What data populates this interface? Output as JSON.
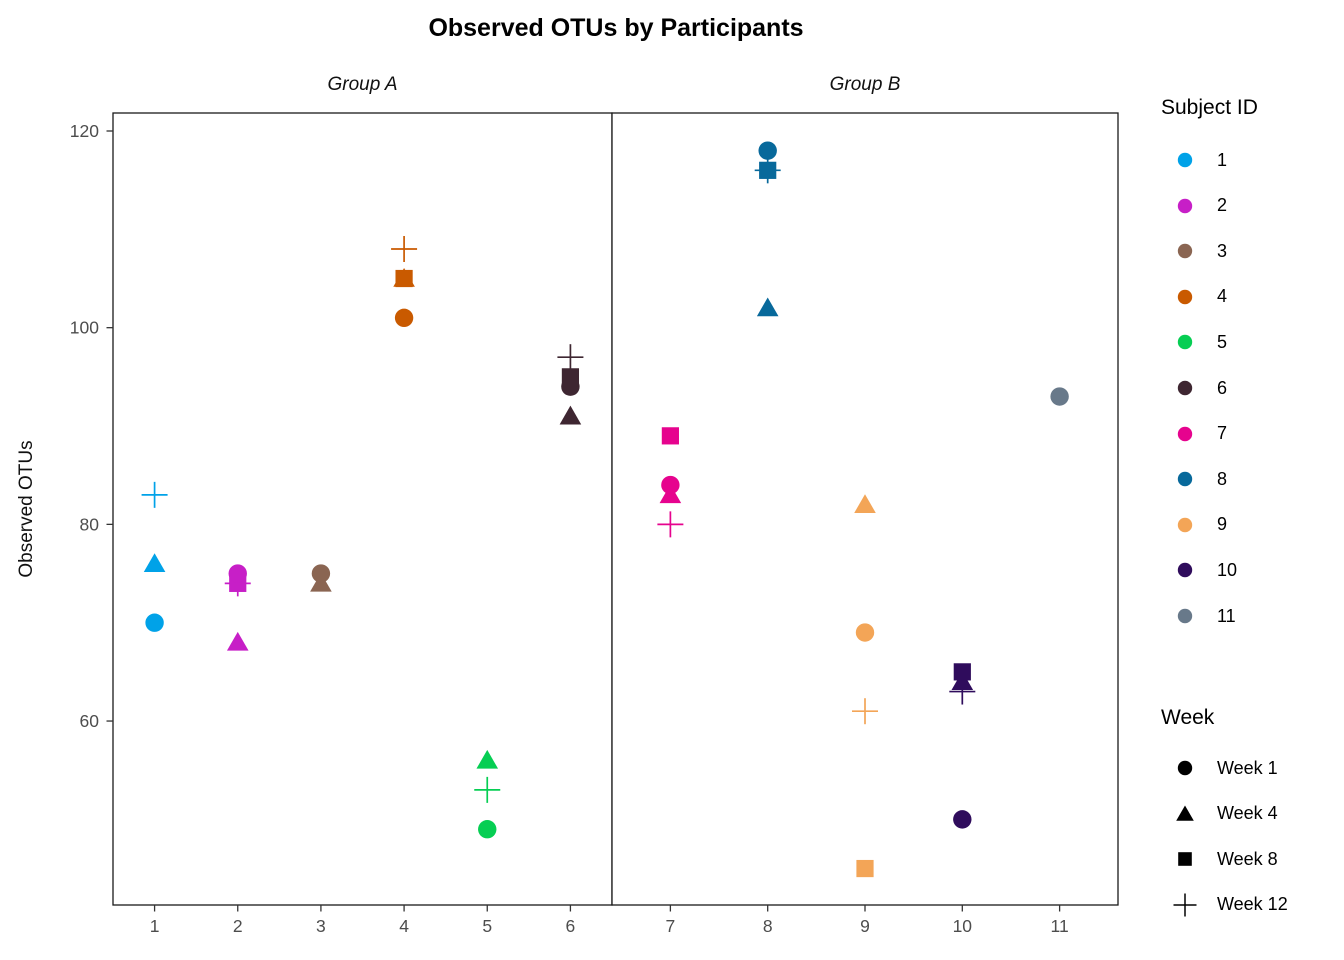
{
  "chart_data": {
    "type": "scatter",
    "title": "Observed OTUs by Participants",
    "ylabel": "Observed OTUs",
    "xlabel": "",
    "grid": false,
    "legend_position": "right",
    "ylim": [
      41.3,
      121.8
    ],
    "yticks": [
      120,
      100,
      80,
      60
    ],
    "facets": [
      {
        "label": "Group A",
        "xlim": [
          0.5,
          6.5
        ],
        "xticks": [
          1,
          2,
          3,
          4,
          5,
          6
        ]
      },
      {
        "label": "Group B",
        "xlim": [
          6.4,
          11.6
        ],
        "xticks": [
          7,
          8,
          9,
          10,
          11
        ]
      }
    ],
    "color_legend": {
      "title": "Subject ID",
      "items": [
        {
          "label": "1",
          "color": "#00A2E8"
        },
        {
          "label": "2",
          "color": "#C71FC7"
        },
        {
          "label": "3",
          "color": "#8A6552"
        },
        {
          "label": "4",
          "color": "#C95A00"
        },
        {
          "label": "5",
          "color": "#06CE53"
        },
        {
          "label": "6",
          "color": "#3E2631"
        },
        {
          "label": "7",
          "color": "#E6038E"
        },
        {
          "label": "8",
          "color": "#08699B"
        },
        {
          "label": "9",
          "color": "#F3A557"
        },
        {
          "label": "10",
          "color": "#2F0C5C"
        },
        {
          "label": "11",
          "color": "#68798A"
        }
      ]
    },
    "shape_legend": {
      "title": "Week",
      "items": [
        {
          "label": "Week 1",
          "shape": "circle"
        },
        {
          "label": "Week 4",
          "shape": "triangle"
        },
        {
          "label": "Week 8",
          "shape": "square"
        },
        {
          "label": "Week 12",
          "shape": "plus"
        }
      ]
    },
    "series": [
      {
        "subject": "1",
        "facet": 0,
        "x": 1,
        "color": "#00A2E8",
        "points": [
          {
            "week": "Week 12",
            "shape": "plus",
            "y": 83
          },
          {
            "week": "Week 4",
            "shape": "triangle",
            "y": 76
          },
          {
            "week": "Week 1",
            "shape": "circle",
            "y": 70
          }
        ]
      },
      {
        "subject": "2",
        "facet": 0,
        "x": 2,
        "color": "#C71FC7",
        "points": [
          {
            "week": "Week 12",
            "shape": "plus",
            "y": 74
          },
          {
            "week": "Week 4",
            "shape": "triangle",
            "y": 68
          },
          {
            "week": "Week 8",
            "shape": "square",
            "y": 74
          },
          {
            "week": "Week 1",
            "shape": "circle",
            "y": 75
          }
        ]
      },
      {
        "subject": "3",
        "facet": 0,
        "x": 3,
        "color": "#8A6552",
        "points": [
          {
            "week": "Week 4",
            "shape": "triangle",
            "y": 74
          },
          {
            "week": "Week 1",
            "shape": "circle",
            "y": 75
          }
        ]
      },
      {
        "subject": "4",
        "facet": 0,
        "x": 4,
        "color": "#C95A00",
        "points": [
          {
            "week": "Week 12",
            "shape": "plus",
            "y": 108
          },
          {
            "week": "Week 4",
            "shape": "triangle",
            "y": 105
          },
          {
            "week": "Week 8",
            "shape": "square",
            "y": 105
          },
          {
            "week": "Week 1",
            "shape": "circle",
            "y": 101
          }
        ]
      },
      {
        "subject": "5",
        "facet": 0,
        "x": 5,
        "color": "#06CE53",
        "points": [
          {
            "week": "Week 4",
            "shape": "triangle",
            "y": 56
          },
          {
            "week": "Week 12",
            "shape": "plus",
            "y": 53
          },
          {
            "week": "Week 1",
            "shape": "circle",
            "y": 49
          }
        ]
      },
      {
        "subject": "6",
        "facet": 0,
        "x": 6,
        "color": "#3E2631",
        "points": [
          {
            "week": "Week 12",
            "shape": "plus",
            "y": 97
          },
          {
            "week": "Week 4",
            "shape": "triangle",
            "y": 91
          },
          {
            "week": "Week 8",
            "shape": "square",
            "y": 95
          },
          {
            "week": "Week 1",
            "shape": "circle",
            "y": 94
          }
        ]
      },
      {
        "subject": "7",
        "facet": 1,
        "x": 7,
        "color": "#E6038E",
        "points": [
          {
            "week": "Week 12",
            "shape": "plus",
            "y": 80
          },
          {
            "week": "Week 4",
            "shape": "triangle",
            "y": 83
          },
          {
            "week": "Week 8",
            "shape": "square",
            "y": 89
          },
          {
            "week": "Week 1",
            "shape": "circle",
            "y": 84
          }
        ]
      },
      {
        "subject": "8",
        "facet": 1,
        "x": 8,
        "color": "#08699B",
        "points": [
          {
            "week": "Week 12",
            "shape": "plus",
            "y": 116
          },
          {
            "week": "Week 4",
            "shape": "triangle",
            "y": 102
          },
          {
            "week": "Week 8",
            "shape": "square",
            "y": 116
          },
          {
            "week": "Week 1",
            "shape": "circle",
            "y": 118
          }
        ]
      },
      {
        "subject": "9",
        "facet": 1,
        "x": 9,
        "color": "#F3A557",
        "points": [
          {
            "week": "Week 4",
            "shape": "triangle",
            "y": 82
          },
          {
            "week": "Week 1",
            "shape": "circle",
            "y": 69
          },
          {
            "week": "Week 12",
            "shape": "plus",
            "y": 61
          },
          {
            "week": "Week 8",
            "shape": "square",
            "y": 45
          }
        ]
      },
      {
        "subject": "10",
        "facet": 1,
        "x": 10,
        "color": "#2F0C5C",
        "points": [
          {
            "week": "Week 12",
            "shape": "plus",
            "y": 63
          },
          {
            "week": "Week 4",
            "shape": "triangle",
            "y": 64
          },
          {
            "week": "Week 8",
            "shape": "square",
            "y": 65
          },
          {
            "week": "Week 1",
            "shape": "circle",
            "y": 50
          }
        ]
      },
      {
        "subject": "11",
        "facet": 1,
        "x": 11,
        "color": "#68798A",
        "points": [
          {
            "week": "Week 1",
            "shape": "circle",
            "y": 93
          }
        ]
      }
    ],
    "axis_text_color": "#4D4D4D",
    "panel_border_color": "#1a1a1a"
  }
}
